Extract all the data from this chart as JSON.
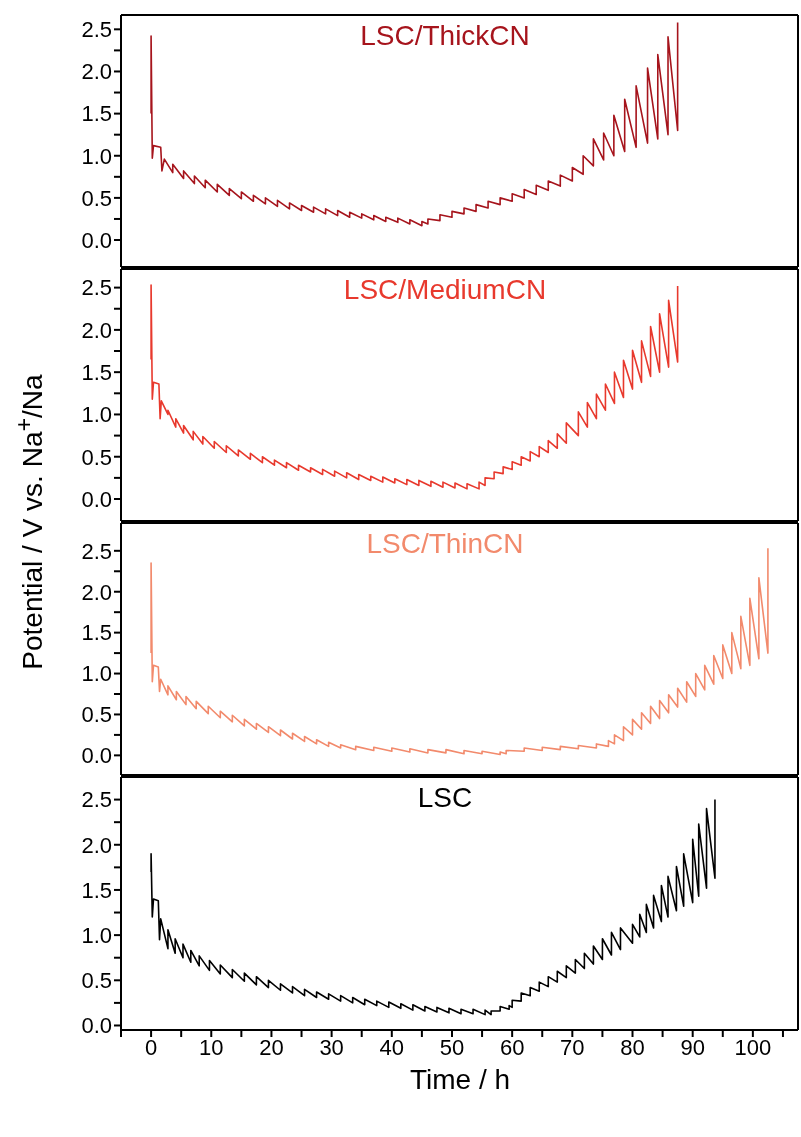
{
  "chart_data": [
    {
      "type": "line",
      "title": "LSC/ThickCN",
      "xlim": [
        -5,
        107.5
      ],
      "ylim": [
        -0.32,
        2.67
      ],
      "tick_labels": "y",
      "yticks": [
        {
          "value": 0,
          "label": "0.0"
        },
        {
          "value": 0.25,
          "label": null
        },
        {
          "value": 0.5,
          "label": "0.5"
        },
        {
          "value": 0.75,
          "label": null
        },
        {
          "value": 1,
          "label": "1.0"
        },
        {
          "value": 1.25,
          "label": null
        },
        {
          "value": 1.5,
          "label": "1.5"
        },
        {
          "value": 1.75,
          "label": null
        },
        {
          "value": 2,
          "label": "2.0"
        },
        {
          "value": 2.25,
          "label": null
        },
        {
          "value": 2.5,
          "label": "2.5"
        }
      ],
      "series": [
        {
          "color": "#a6141c",
          "x": [
            0,
            0,
            0.2,
            0.4,
            1.6,
            1.8,
            2.2,
            3.6,
            3.6,
            5.4,
            5.4,
            7.2,
            7.2,
            9,
            9,
            11,
            11,
            13,
            13,
            15,
            15,
            17,
            17,
            19,
            19,
            21,
            21,
            23,
            23,
            25,
            25,
            27,
            27,
            29,
            29,
            31,
            31,
            33,
            33,
            35,
            35,
            37,
            37,
            39,
            39,
            41,
            41,
            43,
            43,
            45,
            45,
            46,
            46,
            48,
            48,
            50,
            50,
            52,
            52,
            54,
            54,
            56,
            56,
            58,
            58,
            60,
            60,
            62,
            62,
            64,
            64,
            66,
            66,
            68,
            68,
            70,
            70,
            71.8,
            71.8,
            73.5,
            73.5,
            75.2,
            75.2,
            76.9,
            76.9,
            78.7,
            78.7,
            80.6,
            80.6,
            82.5,
            82.5,
            84.2,
            84.2,
            85.9,
            85.9,
            87.5,
            87.5
          ],
          "values": [
            1.5,
            2.42,
            0.97,
            1.12,
            1.1,
            0.82,
            0.96,
            0.8,
            0.9,
            0.73,
            0.82,
            0.67,
            0.76,
            0.62,
            0.71,
            0.57,
            0.66,
            0.53,
            0.61,
            0.49,
            0.57,
            0.46,
            0.53,
            0.43,
            0.5,
            0.4,
            0.47,
            0.37,
            0.44,
            0.35,
            0.41,
            0.33,
            0.39,
            0.31,
            0.37,
            0.29,
            0.35,
            0.27,
            0.33,
            0.26,
            0.31,
            0.24,
            0.29,
            0.22,
            0.27,
            0.21,
            0.26,
            0.19,
            0.24,
            0.17,
            0.22,
            0.19,
            0.25,
            0.23,
            0.3,
            0.27,
            0.34,
            0.31,
            0.38,
            0.34,
            0.42,
            0.38,
            0.46,
            0.42,
            0.5,
            0.46,
            0.55,
            0.5,
            0.6,
            0.54,
            0.65,
            0.59,
            0.7,
            0.64,
            0.77,
            0.7,
            0.86,
            0.78,
            1.0,
            0.88,
            1.2,
            0.95,
            1.27,
            1.0,
            1.48,
            1.05,
            1.67,
            1.1,
            1.83,
            1.15,
            2.04,
            1.2,
            2.2,
            1.25,
            2.41,
            1.3,
            2.58
          ]
        }
      ]
    },
    {
      "type": "line",
      "title": "LSC/MediumCN",
      "ylabel": "Potential / V vs. Na$^{+}$/Na",
      "xlim": [
        -5,
        107.5
      ],
      "ylim": [
        -0.26,
        2.72
      ],
      "tick_labels": "y",
      "yticks": [
        {
          "value": 0,
          "label": "0.0"
        },
        {
          "value": 0.25,
          "label": null
        },
        {
          "value": 0.5,
          "label": "0.5"
        },
        {
          "value": 0.75,
          "label": null
        },
        {
          "value": 1,
          "label": "1.0"
        },
        {
          "value": 1.25,
          "label": null
        },
        {
          "value": 1.5,
          "label": "1.5"
        },
        {
          "value": 1.75,
          "label": null
        },
        {
          "value": 2,
          "label": "2.0"
        },
        {
          "value": 2.25,
          "label": null
        },
        {
          "value": 2.5,
          "label": "2.5"
        }
      ],
      "series": [
        {
          "color": "#e8392d",
          "x": [
            0,
            0,
            0.2,
            0.4,
            1.3,
            1.5,
            1.7,
            2.8,
            2.8,
            4.1,
            4.1,
            5.4,
            5.4,
            7,
            7,
            8.6,
            8.6,
            10.5,
            10.5,
            12.5,
            12.5,
            14.5,
            14.5,
            16.5,
            16.5,
            18.5,
            18.5,
            20.5,
            20.5,
            22.5,
            22.5,
            24.5,
            24.5,
            26.5,
            26.5,
            28.5,
            28.5,
            30.5,
            30.5,
            32.5,
            32.5,
            34.5,
            34.5,
            36.5,
            36.5,
            38.5,
            38.5,
            40.5,
            40.5,
            42.5,
            42.5,
            44.5,
            44.5,
            46.5,
            46.5,
            48.5,
            48.5,
            50.5,
            50.5,
            52.5,
            52.5,
            54.5,
            54.5,
            55.5,
            55.5,
            57,
            57,
            58.5,
            58.5,
            60,
            60,
            61.5,
            61.5,
            63,
            63,
            64.5,
            64.5,
            66,
            66,
            67.5,
            67.5,
            69,
            69,
            71,
            71,
            72.5,
            72.5,
            74,
            74,
            75.5,
            75.5,
            77,
            77,
            78.5,
            78.5,
            80,
            80,
            81.5,
            81.5,
            83,
            83,
            84.5,
            84.5,
            86,
            86,
            87.5,
            87.5
          ],
          "values": [
            1.65,
            2.53,
            1.18,
            1.38,
            1.36,
            0.95,
            1.16,
            1.0,
            1.05,
            0.85,
            0.95,
            0.78,
            0.87,
            0.7,
            0.8,
            0.65,
            0.74,
            0.6,
            0.68,
            0.55,
            0.63,
            0.51,
            0.58,
            0.47,
            0.54,
            0.43,
            0.5,
            0.4,
            0.46,
            0.37,
            0.43,
            0.34,
            0.4,
            0.32,
            0.37,
            0.29,
            0.35,
            0.27,
            0.33,
            0.25,
            0.31,
            0.23,
            0.29,
            0.22,
            0.27,
            0.2,
            0.26,
            0.19,
            0.24,
            0.17,
            0.23,
            0.16,
            0.22,
            0.15,
            0.21,
            0.14,
            0.2,
            0.13,
            0.19,
            0.12,
            0.18,
            0.12,
            0.2,
            0.16,
            0.25,
            0.24,
            0.32,
            0.3,
            0.38,
            0.35,
            0.44,
            0.4,
            0.5,
            0.45,
            0.56,
            0.5,
            0.62,
            0.55,
            0.69,
            0.6,
            0.77,
            0.66,
            0.9,
            0.75,
            1.03,
            0.85,
            1.14,
            0.95,
            1.24,
            1.05,
            1.36,
            1.13,
            1.5,
            1.2,
            1.64,
            1.3,
            1.76,
            1.38,
            1.87,
            1.45,
            2.04,
            1.5,
            2.19,
            1.56,
            2.35,
            1.62,
            2.52
          ]
        }
      ]
    },
    {
      "type": "line",
      "title": "LSC/ThinCN",
      "xlim": [
        -5,
        107.5
      ],
      "ylim": [
        -0.24,
        2.84
      ],
      "tick_labels": "y",
      "yticks": [
        {
          "value": 0,
          "label": "0.0"
        },
        {
          "value": 0.25,
          "label": null
        },
        {
          "value": 0.5,
          "label": "0.5"
        },
        {
          "value": 0.75,
          "label": null
        },
        {
          "value": 1,
          "label": "1.0"
        },
        {
          "value": 1.25,
          "label": null
        },
        {
          "value": 1.5,
          "label": "1.5"
        },
        {
          "value": 1.75,
          "label": null
        },
        {
          "value": 2,
          "label": "2.0"
        },
        {
          "value": 2.25,
          "label": null
        },
        {
          "value": 2.5,
          "label": "2.5"
        }
      ],
      "series": [
        {
          "color": "#f28a6c",
          "x": [
            0,
            0,
            0.2,
            0.4,
            1.2,
            1.4,
            1.6,
            2.8,
            2.8,
            4.2,
            4.2,
            5.8,
            5.8,
            7.5,
            7.5,
            9.5,
            9.5,
            11.5,
            11.5,
            13.5,
            13.5,
            15.5,
            15.5,
            17.5,
            17.5,
            19.5,
            19.5,
            21.5,
            21.5,
            23.5,
            23.5,
            25.5,
            25.5,
            27.5,
            27.5,
            29.5,
            29.5,
            31.5,
            31.5,
            34,
            34,
            37,
            37,
            40,
            40,
            43,
            43,
            46,
            46,
            49,
            49,
            52,
            52,
            55,
            55,
            58,
            58,
            59,
            59,
            62,
            62,
            65,
            65,
            68,
            68,
            71,
            71,
            74,
            74,
            76,
            76,
            77,
            77,
            78.5,
            78.5,
            80,
            80,
            81.5,
            81.5,
            83,
            83,
            84.5,
            84.5,
            86,
            86,
            87.5,
            87.5,
            89,
            89,
            90.5,
            90.5,
            92,
            92,
            93.5,
            93.5,
            95,
            95,
            96.5,
            96.5,
            98,
            98,
            99.5,
            99.5,
            101,
            101,
            102.5,
            102.5
          ],
          "values": [
            1.25,
            2.35,
            0.9,
            1.1,
            1.08,
            0.78,
            0.93,
            0.74,
            0.85,
            0.68,
            0.78,
            0.62,
            0.72,
            0.57,
            0.66,
            0.51,
            0.6,
            0.46,
            0.54,
            0.41,
            0.49,
            0.36,
            0.44,
            0.32,
            0.39,
            0.28,
            0.35,
            0.24,
            0.31,
            0.2,
            0.27,
            0.17,
            0.23,
            0.14,
            0.19,
            0.11,
            0.16,
            0.09,
            0.13,
            0.07,
            0.11,
            0.06,
            0.1,
            0.05,
            0.09,
            0.04,
            0.08,
            0.03,
            0.07,
            0.03,
            0.07,
            0.02,
            0.06,
            0.02,
            0.05,
            0.01,
            0.04,
            0.02,
            0.06,
            0.05,
            0.09,
            0.06,
            0.1,
            0.07,
            0.11,
            0.08,
            0.12,
            0.09,
            0.14,
            0.11,
            0.18,
            0.14,
            0.25,
            0.18,
            0.35,
            0.25,
            0.44,
            0.32,
            0.52,
            0.39,
            0.6,
            0.45,
            0.67,
            0.52,
            0.74,
            0.59,
            0.82,
            0.65,
            0.9,
            0.72,
            1.0,
            0.8,
            1.1,
            0.87,
            1.22,
            0.94,
            1.35,
            1.0,
            1.5,
            1.06,
            1.7,
            1.1,
            1.92,
            1.18,
            2.17,
            1.25,
            2.53
          ]
        }
      ]
    },
    {
      "type": "line",
      "title": "LSC",
      "xlabel": "Time / h",
      "xlim": [
        -5,
        107.5
      ],
      "ylim": [
        -0.05,
        2.75
      ],
      "xticks": [
        {
          "value": -5,
          "label": null
        },
        0,
        {
          "value": 5,
          "label": null
        },
        10,
        {
          "value": 15,
          "label": null
        },
        20,
        {
          "value": 25,
          "label": null
        },
        30,
        {
          "value": 35,
          "label": null
        },
        40,
        {
          "value": 45,
          "label": null
        },
        50,
        {
          "value": 55,
          "label": null
        },
        60,
        {
          "value": 65,
          "label": null
        },
        70,
        {
          "value": 75,
          "label": null
        },
        80,
        {
          "value": 85,
          "label": null
        },
        90,
        {
          "value": 95,
          "label": null
        },
        100,
        {
          "value": 105,
          "label": null
        }
      ],
      "yticks": [
        {
          "value": 0,
          "label": "0.0"
        },
        {
          "value": 0.25,
          "label": null
        },
        {
          "value": 0.5,
          "label": "0.5"
        },
        {
          "value": 0.75,
          "label": null
        },
        {
          "value": 1,
          "label": "1.0"
        },
        {
          "value": 1.25,
          "label": null
        },
        {
          "value": 1.5,
          "label": "1.5"
        },
        {
          "value": 1.75,
          "label": null
        },
        {
          "value": 2,
          "label": "2.0"
        },
        {
          "value": 2.25,
          "label": null
        },
        {
          "value": 2.5,
          "label": "2.5"
        }
      ],
      "series": [
        {
          "color": "#000000",
          "x": [
            0,
            0,
            0.2,
            0.4,
            1.2,
            1.4,
            1.6,
            2.8,
            2.8,
            4,
            4,
            5.3,
            5.3,
            6.6,
            6.6,
            8,
            8,
            9.7,
            9.7,
            11.5,
            11.5,
            13.5,
            13.5,
            15.5,
            15.5,
            17.5,
            17.5,
            19.5,
            19.5,
            21.5,
            21.5,
            23.5,
            23.5,
            25.5,
            25.5,
            27.5,
            27.5,
            29.5,
            29.5,
            31.5,
            31.5,
            33.5,
            33.5,
            35.5,
            35.5,
            37.5,
            37.5,
            39.5,
            39.5,
            41.5,
            41.5,
            43.5,
            43.5,
            45.5,
            45.5,
            47.5,
            47.5,
            49.5,
            49.5,
            51.5,
            51.5,
            53.5,
            53.5,
            55.5,
            55.5,
            56.5,
            56.5,
            58,
            58,
            59.5,
            59.5,
            60,
            60,
            61.5,
            61.5,
            63,
            63,
            64.5,
            64.5,
            66,
            66,
            67.5,
            67.5,
            69,
            69,
            70.5,
            70.5,
            72,
            72,
            73.5,
            73.5,
            75,
            75,
            76.5,
            76.5,
            78,
            78,
            80,
            80,
            81.2,
            81.2,
            82.3,
            82.3,
            83.5,
            83.5,
            84.8,
            84.8,
            85.9,
            85.9,
            87.3,
            87.3,
            88.5,
            88.5,
            90,
            90,
            91,
            91,
            92.3,
            92.3,
            93.7,
            93.7
          ],
          "values": [
            1.7,
            1.9,
            1.2,
            1.4,
            1.38,
            0.95,
            1.18,
            0.85,
            1.06,
            0.8,
            0.96,
            0.75,
            0.9,
            0.7,
            0.83,
            0.66,
            0.77,
            0.61,
            0.72,
            0.57,
            0.67,
            0.53,
            0.62,
            0.49,
            0.58,
            0.45,
            0.54,
            0.42,
            0.5,
            0.39,
            0.46,
            0.36,
            0.43,
            0.33,
            0.4,
            0.31,
            0.37,
            0.29,
            0.35,
            0.27,
            0.33,
            0.25,
            0.31,
            0.23,
            0.29,
            0.22,
            0.27,
            0.2,
            0.26,
            0.19,
            0.24,
            0.17,
            0.23,
            0.16,
            0.21,
            0.15,
            0.2,
            0.14,
            0.19,
            0.13,
            0.18,
            0.13,
            0.18,
            0.12,
            0.17,
            0.12,
            0.16,
            0.16,
            0.21,
            0.18,
            0.22,
            0.2,
            0.28,
            0.27,
            0.36,
            0.33,
            0.42,
            0.38,
            0.48,
            0.43,
            0.54,
            0.48,
            0.6,
            0.53,
            0.66,
            0.58,
            0.73,
            0.63,
            0.8,
            0.68,
            0.88,
            0.73,
            0.96,
            0.78,
            1.03,
            0.84,
            1.08,
            0.91,
            1.12,
            0.98,
            1.23,
            1.03,
            1.34,
            1.08,
            1.44,
            1.15,
            1.55,
            1.2,
            1.65,
            1.27,
            1.76,
            1.32,
            1.9,
            1.36,
            2.06,
            1.43,
            2.23,
            1.52,
            2.4,
            1.63,
            2.5
          ]
        }
      ]
    }
  ]
}
